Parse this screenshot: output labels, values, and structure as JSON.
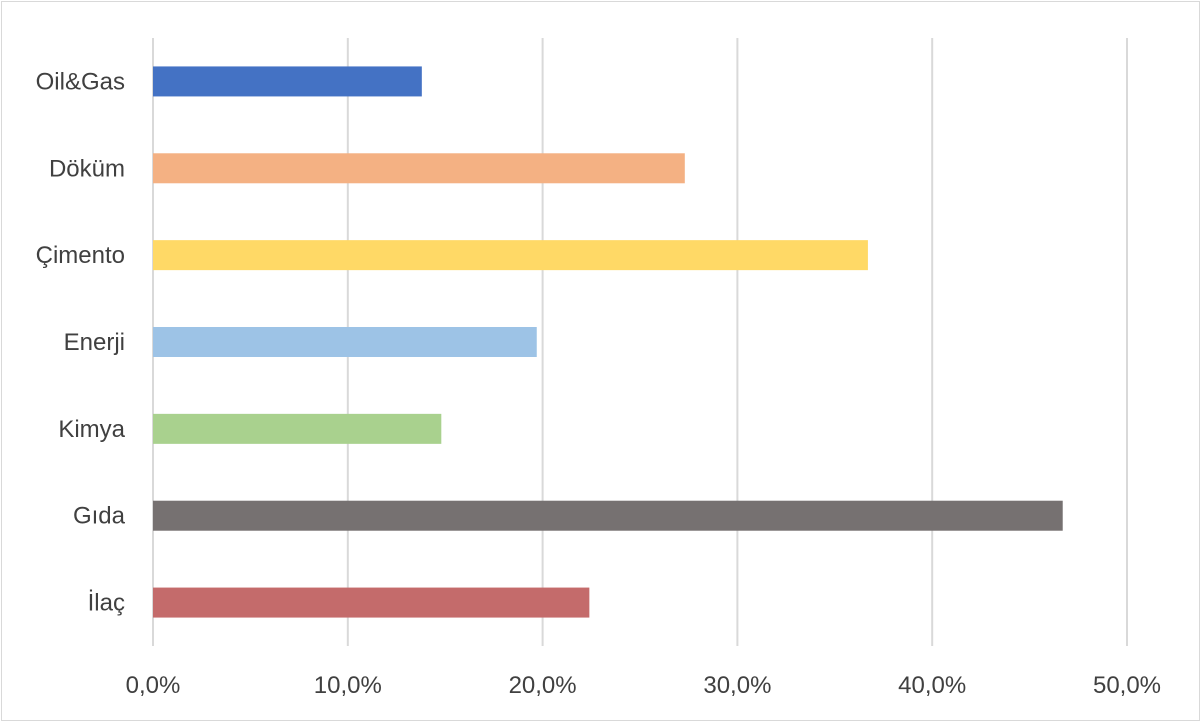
{
  "chart_data": {
    "type": "bar",
    "orientation": "horizontal",
    "title": "",
    "xlabel": "",
    "ylabel": "",
    "categories": [
      "Oil&Gas",
      "Döküm",
      "Çimento",
      "Enerji",
      "Kimya",
      "Gıda",
      "İlaç"
    ],
    "values": [
      13.8,
      27.3,
      36.7,
      19.7,
      14.8,
      46.7,
      22.4
    ],
    "colors": [
      "#4472c4",
      "#f4b183",
      "#ffd966",
      "#9dc3e6",
      "#a9d18e",
      "#767171",
      "#c46b6b"
    ],
    "xlim": [
      0,
      50
    ],
    "x_ticks": [
      0,
      10,
      20,
      30,
      40,
      50
    ],
    "x_tick_labels": [
      "0,0%",
      "10,0%",
      "20,0%",
      "30,0%",
      "40,0%",
      "50,0%"
    ],
    "grid": true,
    "legend": "none"
  }
}
